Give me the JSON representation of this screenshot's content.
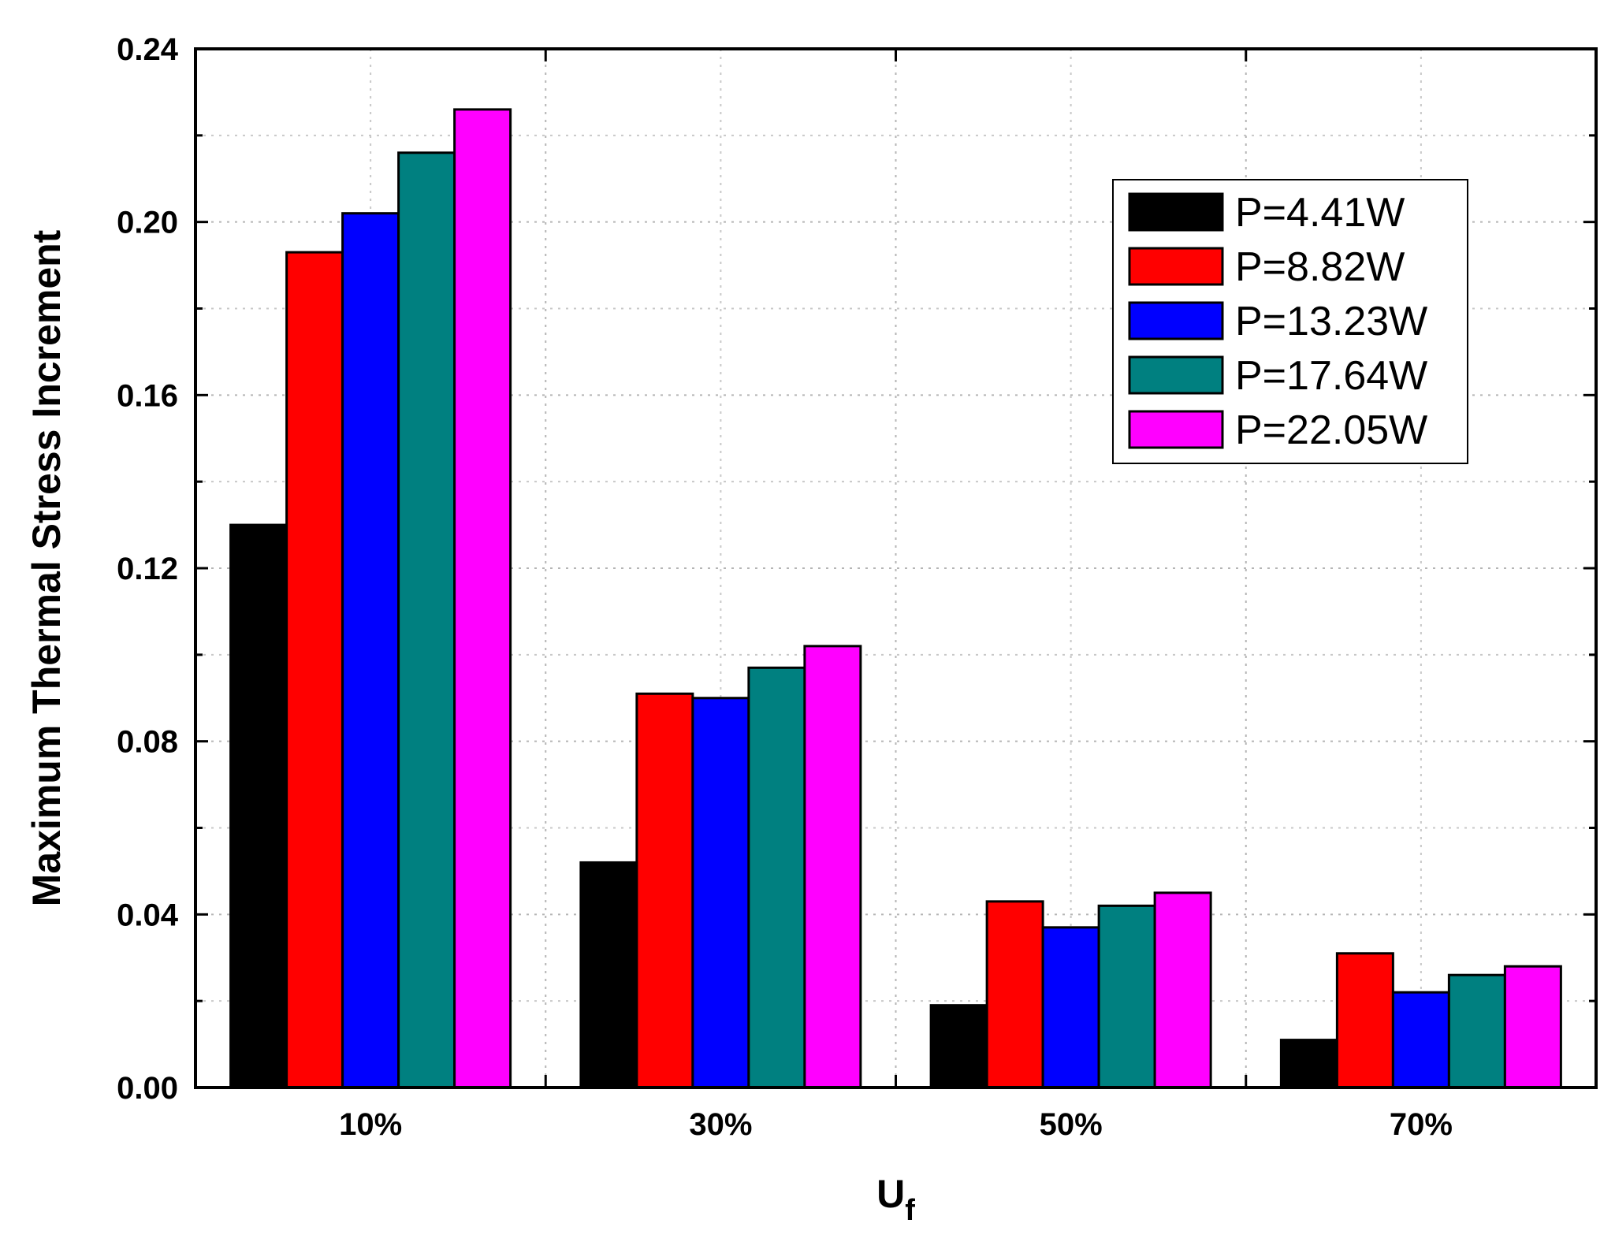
{
  "chart_data": {
    "type": "bar",
    "title": "",
    "xlabel": "U",
    "xlabel_subscript": "f",
    "ylabel": "Maximum Thermal Stress Increment",
    "categories": [
      "10%",
      "30%",
      "50%",
      "70%"
    ],
    "ylim": [
      0,
      0.24
    ],
    "yticks": [
      0.0,
      0.04,
      0.08,
      0.12,
      0.16,
      0.2,
      0.24
    ],
    "ytick_labels": [
      "0.00",
      "0.04",
      "0.08",
      "0.12",
      "0.16",
      "0.20",
      "0.24"
    ],
    "grid": true,
    "legend_position": "top-right",
    "series": [
      {
        "name": "P=4.41W",
        "color": "#000000",
        "values": [
          0.13,
          0.052,
          0.019,
          0.011
        ]
      },
      {
        "name": "P=8.82W",
        "color": "#ff0000",
        "values": [
          0.193,
          0.091,
          0.043,
          0.031
        ]
      },
      {
        "name": "P=13.23W",
        "color": "#0000ff",
        "values": [
          0.202,
          0.09,
          0.037,
          0.022
        ]
      },
      {
        "name": "P=17.64W",
        "color": "#008080",
        "values": [
          0.216,
          0.097,
          0.042,
          0.026
        ]
      },
      {
        "name": "P=22.05W",
        "color": "#ff00ff",
        "values": [
          0.226,
          0.102,
          0.045,
          0.028
        ]
      }
    ]
  }
}
